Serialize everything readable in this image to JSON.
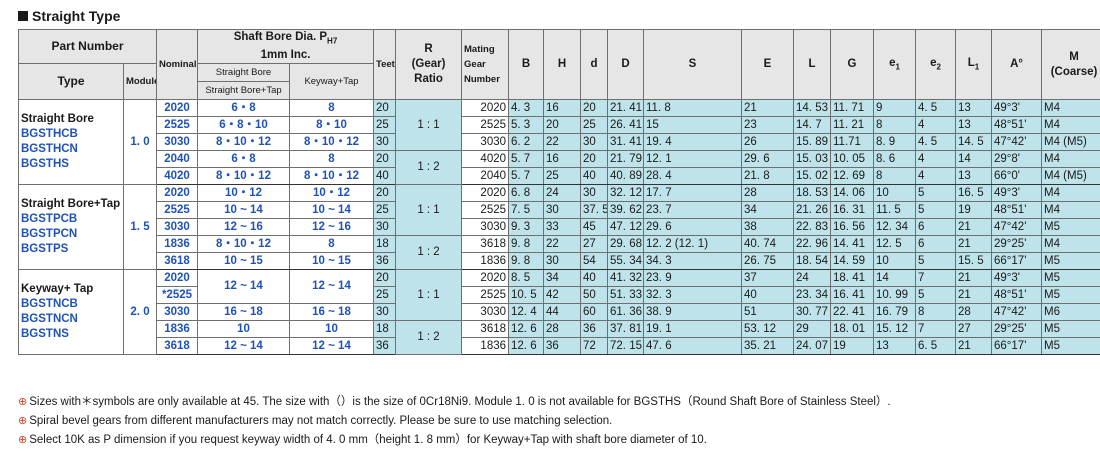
{
  "title": "Straight Type",
  "header": {
    "part_number": "Part Number",
    "type": "Type",
    "module": "Module",
    "shaft_bore": "Shaft Bore Dia. P",
    "shaft_bore_sub": "H7",
    "shaft_bore_unit": "1mm Inc.",
    "nominal": "Nominal",
    "straight_bore": "Straight Bore",
    "straight_bore_tap": "Straight Bore+Tap",
    "keyway_tap": "Keyway+Tap",
    "teeth": "Teeth",
    "r": "R",
    "gear_ratio": "Gear",
    "ratio": "Ratio",
    "mating": "Mating",
    "gear": "Gear",
    "number": "Number",
    "B": "B",
    "H": "H",
    "d": "d",
    "D": "D",
    "S": "S",
    "E": "E",
    "L": "L",
    "G": "G",
    "e1": "e",
    "e1_sub": "1",
    "e2": "e",
    "e2_sub": "2",
    "L1": "L",
    "L1_sub": "1",
    "A": "A°",
    "M": "M",
    "coarse": "(Coarse)"
  },
  "groups": [
    {
      "type_lines": [
        "Straight Bore",
        "BGSTHCB",
        "BGSTHCN",
        "BGSTHS"
      ],
      "module": "1. 0",
      "ratio_top": "1 : 1",
      "ratio_bottom": "1 : 2",
      "rows": [
        {
          "nominal": "2020",
          "sb": "6・8",
          "kt": "8",
          "teeth": "20",
          "mate": "2020",
          "B": "4. 3",
          "H": "16",
          "d": "20",
          "D": "21. 41",
          "S": "11. 8",
          "E": "21",
          "L": "14. 53",
          "G": "11. 71",
          "e1": "9",
          "e2": "4. 5",
          "L1": "13",
          "A": "49°3'",
          "M": "M4"
        },
        {
          "nominal": "2525",
          "sb": "6・8・10",
          "kt": "8・10",
          "teeth": "25",
          "mate": "2525",
          "B": "5. 3",
          "H": "20",
          "d": "25",
          "D": "26. 41",
          "S": "15",
          "E": "23",
          "L": "14. 7",
          "G": "11. 21",
          "e1": "8",
          "e2": "4",
          "L1": "13",
          "A": "48°51'",
          "M": "M4"
        },
        {
          "nominal": "3030",
          "sb": "8・10・12",
          "kt": "8・10・12",
          "teeth": "30",
          "mate": "3030",
          "B": "6. 2",
          "H": "22",
          "d": "30",
          "D": "31. 41",
          "S": "19. 4",
          "E": "26",
          "L": "15. 89",
          "G": "11.71",
          "e1": "8. 9",
          "e2": "4. 5",
          "L1": "14. 5",
          "A": "47°42'",
          "M": "M4 (M5)"
        },
        {
          "nominal": "2040",
          "sb": "6・8",
          "kt": "8",
          "teeth": "20",
          "mate": "4020",
          "B": "5. 7",
          "H": "16",
          "d": "20",
          "D": "21. 79",
          "S": "12. 1",
          "E": "29. 6",
          "L": "15. 03",
          "G": "10. 05",
          "e1": "8. 6",
          "e2": "4",
          "L1": "14",
          "A": "29°8'",
          "M": "M4"
        },
        {
          "nominal": "4020",
          "sb": "8・10・12",
          "kt": "8・10・12",
          "teeth": "40",
          "mate": "2040",
          "B": "5. 7",
          "H": "25",
          "d": "40",
          "D": "40. 89",
          "S": "28. 4",
          "E": "21. 8",
          "L": "15. 02",
          "G": "12. 69",
          "e1": "8",
          "e2": "4",
          "L1": "13",
          "A": "66°0'",
          "M": "M4 (M5)"
        }
      ]
    },
    {
      "type_lines": [
        "Straight Bore+Tap",
        "BGSTPCB",
        "BGSTPCN",
        "BGSTPS"
      ],
      "module": "1. 5",
      "ratio_top": "1 : 1",
      "ratio_bottom": "1 : 2",
      "rows": [
        {
          "nominal": "2020",
          "sb": "10・12",
          "kt": "10・12",
          "teeth": "20",
          "mate": "2020",
          "B": "6. 8",
          "H": "24",
          "d": "30",
          "D": "32. 12",
          "S": "17. 7",
          "E": "28",
          "L": "18. 53",
          "G": "14. 06",
          "e1": "10",
          "e2": "5",
          "L1": "16. 5",
          "A": "49°3'",
          "M": "M4"
        },
        {
          "nominal": "2525",
          "sb": "10 ~ 14",
          "kt": "10 ~ 14",
          "teeth": "25",
          "mate": "2525",
          "B": "7. 5",
          "H": "30",
          "d": "37. 5",
          "D": "39. 62",
          "S": "23. 7",
          "E": "34",
          "L": "21. 26",
          "G": "16. 31",
          "e1": "11. 5",
          "e2": "5",
          "L1": "19",
          "A": "48°51'",
          "M": "M4"
        },
        {
          "nominal": "3030",
          "sb": "12 ~ 16",
          "kt": "12 ~ 16",
          "teeth": "30",
          "mate": "3030",
          "B": "9. 3",
          "H": "33",
          "d": "45",
          "D": "47. 12",
          "S": "29. 6",
          "E": "38",
          "L": "22. 83",
          "G": "16. 56",
          "e1": "12. 34",
          "e2": "6",
          "L1": "21",
          "A": "47°42'",
          "M": "M5"
        },
        {
          "nominal": "1836",
          "sb": "8・10・12",
          "kt": "8",
          "teeth": "18",
          "mate": "3618",
          "B": "9. 8",
          "H": "22",
          "d": "27",
          "D": "29. 68",
          "S": "12. 2 (12. 1)",
          "E": "40. 74",
          "L": "22. 96",
          "G": "14. 41",
          "e1": "12. 5",
          "e2": "6",
          "L1": "21",
          "A": "29°25'",
          "M": "M4"
        },
        {
          "nominal": "3618",
          "sb": "10 ~ 15",
          "kt": "10 ~ 15",
          "teeth": "36",
          "mate": "1836",
          "B": "9. 8",
          "H": "30",
          "d": "54",
          "D": "55. 34",
          "S": "34. 3",
          "E": "26. 75",
          "L": "18. 54",
          "G": "14. 59",
          "e1": "10",
          "e2": "5",
          "L1": "15. 5",
          "A": "66°17'",
          "M": "M5"
        }
      ]
    },
    {
      "type_lines": [
        "Keyway+ Tap",
        "BGSTNCB",
        "BGSTNCN",
        "BGSTNS"
      ],
      "module": "2. 0",
      "ratio_top": "1 : 1",
      "ratio_bottom": "1 : 2",
      "rows": [
        {
          "nominal": "2020",
          "sb": "12 ~ 14",
          "kt": "12 ~ 14",
          "teeth": "20",
          "mate": "2020",
          "B": "8. 5",
          "H": "34",
          "d": "40",
          "D": "41. 32",
          "S": "23. 9",
          "E": "37",
          "L": "24",
          "G": "18. 41",
          "e1": "14",
          "e2": "7",
          "L1": "21",
          "A": "49°3'",
          "M": "M5"
        },
        {
          "nominal": "*2525",
          "sb": "",
          "kt": "",
          "teeth": "25",
          "mate": "2525",
          "B": "10. 5",
          "H": "42",
          "d": "50",
          "D": "51. 33",
          "S": "32. 3",
          "E": "40",
          "L": "23. 34",
          "G": "16. 41",
          "e1": "10. 99",
          "e2": "5",
          "L1": "21",
          "A": "48°51'",
          "M": "M5"
        },
        {
          "nominal": "3030",
          "sb": "16 ~ 18",
          "kt": "16 ~ 18",
          "teeth": "30",
          "mate": "3030",
          "B": "12. 4",
          "H": "44",
          "d": "60",
          "D": "61. 36",
          "S": "38. 9",
          "E": "51",
          "L": "30. 77",
          "G": "22. 41",
          "e1": "16. 79",
          "e2": "8",
          "L1": "28",
          "A": "47°42'",
          "M": "M6"
        },
        {
          "nominal": "1836",
          "sb": "10",
          "kt": "10",
          "teeth": "18",
          "mate": "3618",
          "B": "12. 6",
          "H": "28",
          "d": "36",
          "D": "37. 81",
          "S": "19. 1",
          "E": "53. 12",
          "L": "29",
          "G": "18. 01",
          "e1": "15. 12",
          "e2": "7",
          "L1": "27",
          "A": "29°25'",
          "M": "M5"
        },
        {
          "nominal": "3618",
          "sb": "12 ~ 14",
          "kt": "12 ~ 14",
          "teeth": "36",
          "mate": "1836",
          "B": "12. 6",
          "H": "36",
          "d": "72",
          "D": "72. 15",
          "S": "47. 6",
          "E": "35. 21",
          "L": "24. 07",
          "G": "19",
          "e1": "13",
          "e2": "6. 5",
          "L1": "21",
          "A": "66°17'",
          "M": "M5"
        }
      ]
    }
  ],
  "notes": [
    "Sizes with＊symbols are only available at 45. The size with（）is the size of 0Cr18Ni9. Module 1. 0 is not available for BGSTHS（Round Shaft Bore of  Stainless Steel）.",
    "Spiral bevel gears from different manufacturers may not match correctly. Please be sure to use matching selection.",
    "Select 10K as P dimension if you request keyway width of 4. 0 mm（height 1. 8 mm）for Keyway+Tap with shaft bore diameter of 10."
  ],
  "note_mark": "⊕"
}
